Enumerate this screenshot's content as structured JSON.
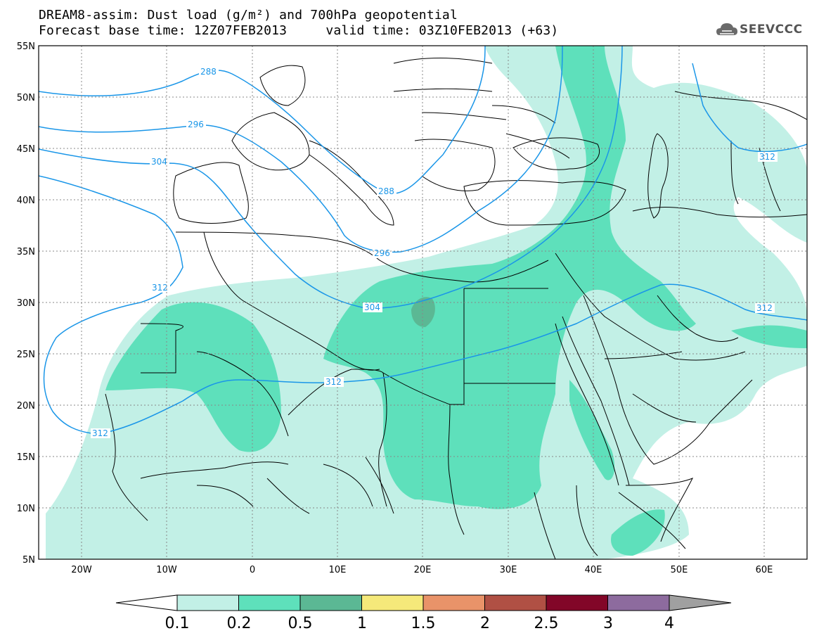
{
  "header": {
    "title_line1": "DREAM8-assim: Dust load (g/m²) and 700hPa geopotential",
    "title_line2": "Forecast base time: 12Z07FEB2013     valid time: 03Z10FEB2013 (+63)",
    "logo_text": "SEEVCCC"
  },
  "map": {
    "lon_range": [
      -25,
      65
    ],
    "lat_range": [
      5,
      55
    ],
    "lat_labels": [
      "55N",
      "50N",
      "45N",
      "40N",
      "35N",
      "30N",
      "25N",
      "20N",
      "15N",
      "10N",
      "5N"
    ],
    "lon_labels": [
      "20W",
      "10W",
      "0",
      "10E",
      "20E",
      "30E",
      "40E",
      "50E",
      "60E"
    ],
    "contour_color": "#1a96e8",
    "contour_labels": [
      "288",
      "296",
      "304",
      "288",
      "296",
      "304",
      "312",
      "312",
      "312",
      "312",
      "312"
    ]
  },
  "colorbar": {
    "levels": [
      "0.1",
      "0.2",
      "0.5",
      "1",
      "1.5",
      "2",
      "2.5",
      "3",
      "4"
    ],
    "colors": [
      "#ffffff",
      "#c2f0e6",
      "#5ee0bb",
      "#5bb894",
      "#f5e97a",
      "#e99369",
      "#b05044",
      "#820628",
      "#8d6b9e",
      "#a0a0a0"
    ]
  }
}
